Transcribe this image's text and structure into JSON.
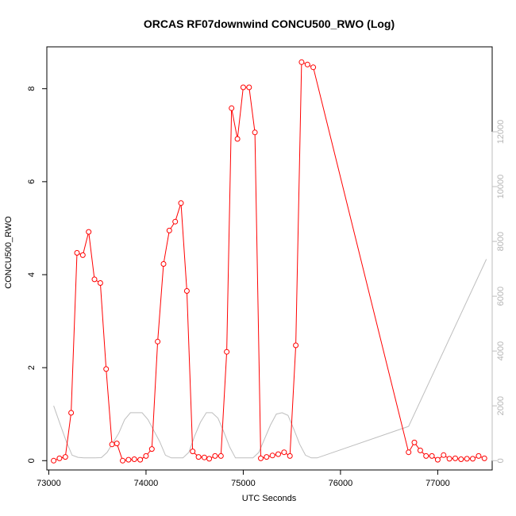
{
  "chart_data": {
    "type": "line",
    "title": "ORCAS RF07downwind CONCU500_RWO (Log)",
    "xlabel": "UTC Seconds",
    "ylabel": "CONCU500_RWO",
    "xlim": [
      72980,
      77560
    ],
    "ylim": [
      -0.2,
      8.9
    ],
    "y2lim": [
      -340,
      15100
    ],
    "x_ticks": [
      73000,
      74000,
      75000,
      76000,
      77000
    ],
    "y_ticks": [
      0,
      2,
      4,
      6,
      8
    ],
    "y2_ticks": [
      0,
      2000,
      4000,
      6000,
      8000,
      10000,
      12000
    ],
    "colors": {
      "primary": "#ff0000",
      "secondary": "#bebebe"
    },
    "series": [
      {
        "axis": "left",
        "points": [
          [
            73050,
            0.0
          ],
          [
            73110,
            0.05
          ],
          [
            73170,
            0.08
          ],
          [
            73230,
            1.03
          ],
          [
            73290,
            4.47
          ],
          [
            73350,
            4.42
          ],
          [
            73410,
            4.92
          ],
          [
            73470,
            3.9
          ],
          [
            73530,
            3.82
          ],
          [
            73590,
            1.97
          ],
          [
            73650,
            0.35
          ],
          [
            73700,
            0.37
          ],
          [
            73760,
            0.0
          ],
          [
            73820,
            0.02
          ],
          [
            73880,
            0.03
          ],
          [
            73940,
            0.02
          ],
          [
            74000,
            0.1
          ],
          [
            74060,
            0.25
          ],
          [
            74120,
            2.56
          ],
          [
            74180,
            4.23
          ],
          [
            74240,
            4.95
          ],
          [
            74300,
            5.14
          ],
          [
            74360,
            5.54
          ],
          [
            74420,
            3.65
          ],
          [
            74480,
            0.2
          ],
          [
            74540,
            0.08
          ],
          [
            74600,
            0.07
          ],
          [
            74650,
            0.04
          ],
          [
            74710,
            0.1
          ],
          [
            74770,
            0.1
          ],
          [
            74830,
            2.34
          ],
          [
            74880,
            7.58
          ],
          [
            74940,
            6.92
          ],
          [
            75000,
            8.03
          ],
          [
            75060,
            8.03
          ],
          [
            75120,
            7.06
          ],
          [
            75180,
            0.05
          ],
          [
            75240,
            0.08
          ],
          [
            75300,
            0.11
          ],
          [
            75360,
            0.14
          ],
          [
            75420,
            0.18
          ],
          [
            75480,
            0.1
          ],
          [
            75540,
            2.48
          ],
          [
            75600,
            8.57
          ],
          [
            75660,
            8.52
          ],
          [
            75720,
            8.46
          ],
          [
            76700,
            0.18
          ],
          [
            76760,
            0.39
          ],
          [
            76820,
            0.22
          ],
          [
            76880,
            0.1
          ],
          [
            76940,
            0.1
          ],
          [
            77000,
            0.02
          ],
          [
            77060,
            0.12
          ],
          [
            77120,
            0.04
          ],
          [
            77180,
            0.05
          ],
          [
            77240,
            0.03
          ],
          [
            77300,
            0.04
          ],
          [
            77360,
            0.04
          ],
          [
            77420,
            0.1
          ],
          [
            77480,
            0.05
          ]
        ]
      },
      {
        "axis": "right",
        "points": [
          [
            73050,
            2000
          ],
          [
            73120,
            1300
          ],
          [
            73180,
            700
          ],
          [
            73240,
            200
          ],
          [
            73300,
            120
          ],
          [
            73360,
            100
          ],
          [
            73420,
            100
          ],
          [
            73480,
            100
          ],
          [
            73540,
            110
          ],
          [
            73600,
            300
          ],
          [
            73660,
            650
          ],
          [
            73720,
            1000
          ],
          [
            73780,
            1500
          ],
          [
            73840,
            1750
          ],
          [
            73900,
            1750
          ],
          [
            73960,
            1750
          ],
          [
            74020,
            1500
          ],
          [
            74080,
            1100
          ],
          [
            74140,
            700
          ],
          [
            74200,
            200
          ],
          [
            74260,
            100
          ],
          [
            74320,
            100
          ],
          [
            74380,
            100
          ],
          [
            74440,
            300
          ],
          [
            74500,
            900
          ],
          [
            74560,
            1400
          ],
          [
            74620,
            1750
          ],
          [
            74680,
            1750
          ],
          [
            74740,
            1550
          ],
          [
            74800,
            1050
          ],
          [
            74860,
            500
          ],
          [
            74920,
            100
          ],
          [
            74980,
            100
          ],
          [
            75040,
            100
          ],
          [
            75100,
            100
          ],
          [
            75160,
            300
          ],
          [
            75220,
            800
          ],
          [
            75280,
            1300
          ],
          [
            75340,
            1700
          ],
          [
            75400,
            1750
          ],
          [
            75460,
            1650
          ],
          [
            75520,
            1150
          ],
          [
            75580,
            600
          ],
          [
            75640,
            200
          ],
          [
            75700,
            100
          ],
          [
            75760,
            100
          ],
          [
            76700,
            1250
          ],
          [
            77500,
            7350
          ]
        ]
      }
    ]
  }
}
